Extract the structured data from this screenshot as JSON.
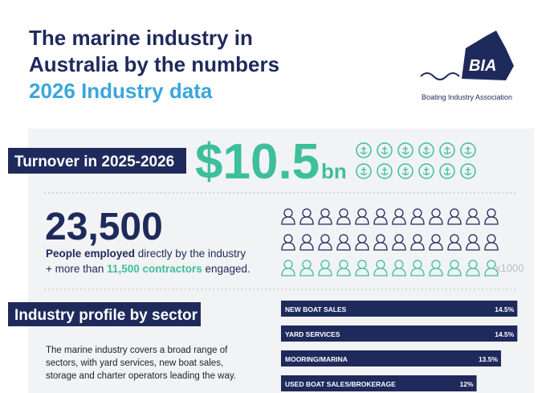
{
  "header": {
    "title_lines": [
      "The marine industry in",
      "Australia by the numbers"
    ],
    "subtitle": "2026 Industry data"
  },
  "logo": {
    "mark": "BIA",
    "name": "Boating Industry Association"
  },
  "turnover": {
    "label": "Turnover in 2025-2026",
    "amount": "$10.5",
    "unit": "bn"
  },
  "employment": {
    "number": "23,500",
    "line1": [
      "People employed",
      " directly by the industry"
    ],
    "line2": [
      "+ more than ",
      "11,500 contractors",
      " engaged."
    ],
    "icon_scale": "x1000"
  },
  "sectors": {
    "label": "Industry profile by sector",
    "description": [
      "The marine industry covers a broad range of",
      "sectors, with yard services, new boat sales,",
      "storage and charter operators leading the way."
    ],
    "categories": [
      "NEW BOAT SALES",
      "YARD SERVICES",
      "MOORING/MARINA",
      "USED BOAT SALES/BROKERAGE"
    ],
    "values": [
      14.5,
      14.5,
      13.5,
      12
    ],
    "value_labels": [
      "14.5%",
      "14.5%",
      "13.5%",
      "12%"
    ]
  }
}
